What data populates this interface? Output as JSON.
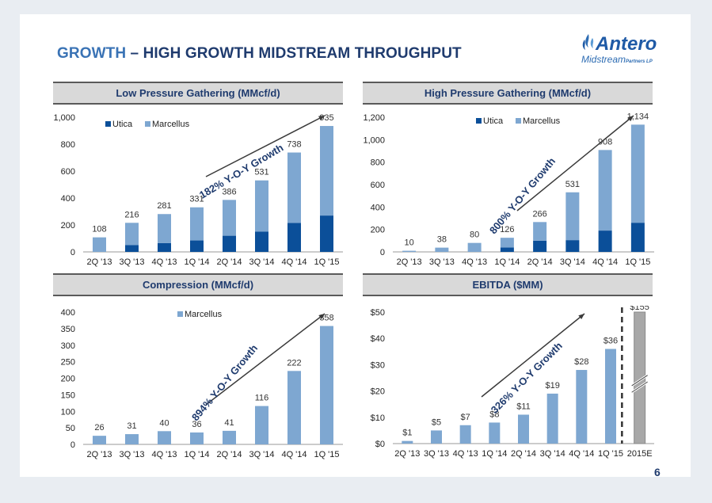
{
  "title": {
    "accent": "GROWTH",
    "rest": " – HIGH GROWTH MIDSTREAM THROUGHPUT"
  },
  "logo": {
    "name": "Antero",
    "sub": "Midstream",
    "sub_small": "Partners LP",
    "icon": "flame-logo-icon"
  },
  "panels": {
    "lp": "Low Pressure Gathering (MMcf/d)",
    "hp": "High Pressure Gathering (MMcf/d)",
    "comp": "Compression (MMcf/d)",
    "ebitda": "EBITDA ($MM)"
  },
  "page_number": "6",
  "colors": {
    "utica": "#0b4f99",
    "marcellus": "#7ea7d1",
    "estimate": "#a8a8a8",
    "title": "#1f3b6e",
    "accent": "#3a73b5"
  },
  "chart_data": [
    {
      "id": "lp",
      "type": "bar",
      "stacked": true,
      "categories": [
        "2Q '13",
        "3Q '13",
        "4Q '13",
        "1Q '14",
        "2Q '14",
        "3Q '14",
        "4Q '14",
        "1Q '15"
      ],
      "series": [
        {
          "name": "Utica",
          "values": [
            0,
            50,
            65,
            85,
            120,
            150,
            215,
            270
          ]
        },
        {
          "name": "Marcellus",
          "values": [
            108,
            166,
            216,
            246,
            266,
            381,
            523,
            665
          ]
        }
      ],
      "totals": [
        "108",
        "216",
        "281",
        "331",
        "386",
        "531",
        "738",
        "935"
      ],
      "ylim": [
        0,
        1000
      ],
      "yticks": [
        0,
        200,
        400,
        600,
        800,
        1000
      ],
      "ytick_labels": [
        "0",
        "200",
        "400",
        "600",
        "800",
        "1,000"
      ],
      "legend_position": "top-left",
      "annotation": "182% Y-O-Y Growth",
      "grid": false
    },
    {
      "id": "hp",
      "type": "bar",
      "stacked": true,
      "categories": [
        "2Q '13",
        "3Q '13",
        "4Q '13",
        "1Q '14",
        "2Q '14",
        "3Q '14",
        "4Q '14",
        "1Q '15"
      ],
      "series": [
        {
          "name": "Utica",
          "values": [
            0,
            0,
            0,
            40,
            100,
            105,
            190,
            260
          ]
        },
        {
          "name": "Marcellus",
          "values": [
            10,
            38,
            80,
            86,
            166,
            426,
            718,
            874
          ]
        }
      ],
      "totals": [
        "10",
        "38",
        "80",
        "126",
        "266",
        "531",
        "908",
        "1,134"
      ],
      "ylim": [
        0,
        1200
      ],
      "yticks": [
        0,
        200,
        400,
        600,
        800,
        1000,
        1200
      ],
      "ytick_labels": [
        "0",
        "200",
        "400",
        "600",
        "800",
        "1,000",
        "1,200"
      ],
      "legend_position": "top-left",
      "annotation": "800% Y-O-Y Growth",
      "grid": false
    },
    {
      "id": "comp",
      "type": "bar",
      "stacked": false,
      "categories": [
        "2Q '13",
        "3Q '13",
        "4Q '13",
        "1Q '14",
        "2Q '14",
        "3Q '14",
        "4Q '14",
        "1Q '15"
      ],
      "series": [
        {
          "name": "Marcellus",
          "values": [
            26,
            31,
            40,
            36,
            41,
            116,
            222,
            358
          ]
        }
      ],
      "totals": [
        "26",
        "31",
        "40",
        "36",
        "41",
        "116",
        "222",
        "358"
      ],
      "ylim": [
        0,
        400
      ],
      "yticks": [
        0,
        50,
        100,
        150,
        200,
        250,
        300,
        350,
        400
      ],
      "ytick_labels": [
        "0",
        "50",
        "100",
        "150",
        "200",
        "250",
        "300",
        "350",
        "400"
      ],
      "legend_position": "top-center",
      "annotation": "894% Y-O-Y Growth",
      "grid": false
    },
    {
      "id": "ebitda",
      "type": "bar",
      "stacked": false,
      "categories": [
        "2Q '13",
        "3Q '13",
        "4Q '13",
        "1Q '14",
        "2Q '14",
        "3Q '14",
        "4Q '14",
        "1Q '15",
        "2015E"
      ],
      "series": [
        {
          "values": [
            1,
            5,
            7,
            8,
            11,
            19,
            28,
            36,
            155
          ]
        }
      ],
      "totals": [
        "$1",
        "$5",
        "$7",
        "$8",
        "$11",
        "$19",
        "$28",
        "$36",
        "$155"
      ],
      "ylim": [
        0,
        50
      ],
      "axis_break": true,
      "yticks": [
        0,
        10,
        20,
        30,
        40,
        50
      ],
      "ytick_labels": [
        "$0",
        "$10",
        "$20",
        "$30",
        "$40",
        "$50"
      ],
      "annotation": "326% Y-O-Y Growth",
      "grid": false
    }
  ]
}
